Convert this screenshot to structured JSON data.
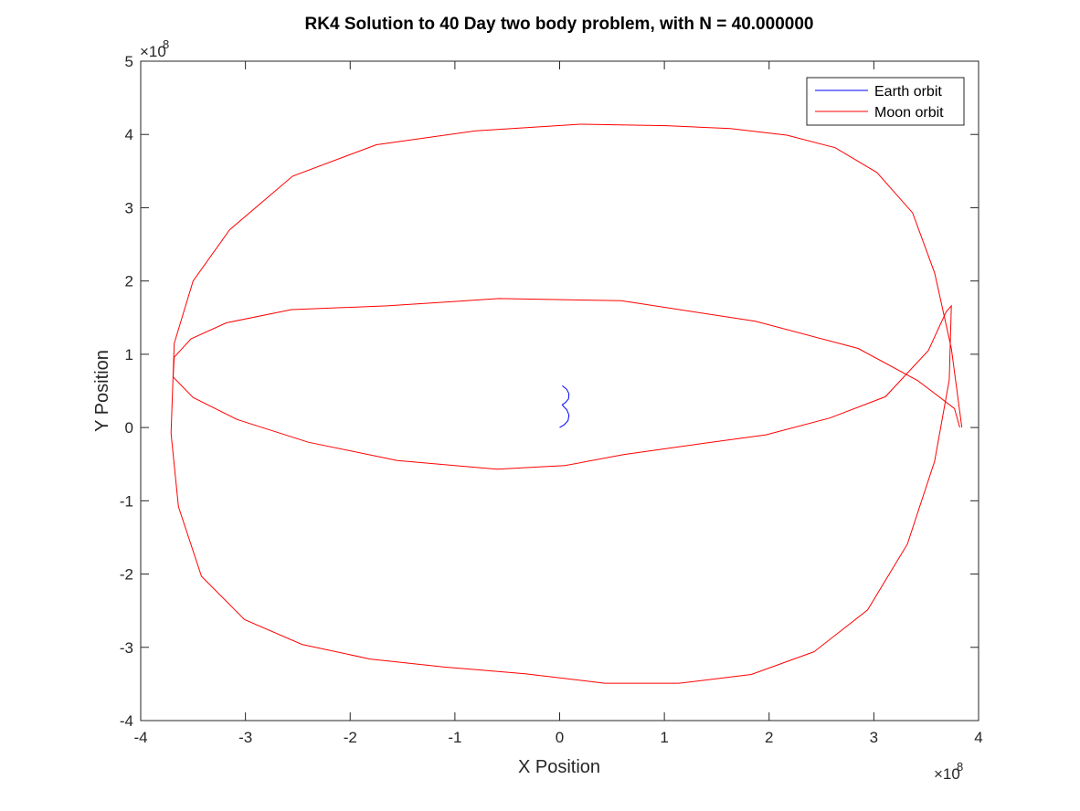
{
  "chart_data": {
    "type": "line",
    "title": "RK4 Solution to 40 Day two body problem, with N = 40.000000",
    "xlabel": "X Position",
    "ylabel": "Y Position",
    "xlim": [
      -400000000,
      400000000
    ],
    "ylim": [
      -400000000,
      500000000
    ],
    "x_ticks": [
      -400000000,
      -300000000,
      -200000000,
      -100000000,
      0,
      100000000,
      200000000,
      300000000,
      400000000
    ],
    "y_ticks": [
      -400000000,
      -300000000,
      -200000000,
      -100000000,
      0,
      100000000,
      200000000,
      300000000,
      400000000,
      500000000
    ],
    "x_tick_labels": [
      "-4",
      "-3",
      "-2",
      "-1",
      "0",
      "1",
      "2",
      "3",
      "4"
    ],
    "y_tick_labels": [
      "-4",
      "-3",
      "-2",
      "-1",
      "0",
      "1",
      "2",
      "3",
      "4",
      "5"
    ],
    "x_exponent": {
      "base": "×10",
      "power": "8"
    },
    "y_exponent": {
      "base": "×10",
      "power": "8"
    },
    "grid": false,
    "legend_position": "top-right",
    "series": [
      {
        "name": "Earth orbit",
        "color": "#0000ff",
        "x": [
          0,
          4100000,
          8000000,
          8900000,
          7000000,
          3800000,
          2500000,
          5500000,
          8500000,
          8900000,
          6800000,
          3400000,
          2500000
        ],
        "y": [
          0,
          3500000,
          9500000,
          17000000,
          24000000,
          28500000,
          31000000,
          34000000,
          39000000,
          46000000,
          52000000,
          56000000,
          57000000
        ]
      },
      {
        "name": "Moon orbit",
        "color": "#ff0000",
        "x": [
          384000000,
          374000000,
          358000000,
          337000000,
          303000000,
          263000000,
          217000000,
          163000000,
          102000000,
          20000000,
          -80000000,
          -175000000,
          -255000000,
          -315000000,
          -350000000,
          -368000000,
          -371000000,
          -364000000,
          -342000000,
          -301000000,
          -246000000,
          -181000000,
          -110000000,
          -33000000,
          43000000,
          114000000,
          183000000,
          243000000,
          294000000,
          332000000,
          358000000,
          372000000,
          374000000,
          369000000,
          352000000,
          311000000,
          258000000,
          197000000,
          130000000,
          61000000,
          5000000,
          -60000000,
          -155000000,
          -240000000,
          -308000000,
          -350000000,
          -369000000,
          -368000000,
          -352000000,
          -318000000,
          -256000000,
          -165000000,
          -58000000,
          59000000,
          187000000,
          285000000,
          342000000,
          377000000,
          382000000
        ],
        "y": [
          0,
          108000000,
          211000000,
          293000000,
          348000000,
          382000000,
          399000000,
          408000000,
          412000000,
          414000000,
          405000000,
          386000000,
          343000000,
          270000000,
          200000000,
          115000000,
          -8000000,
          -108000000,
          -203000000,
          -262000000,
          -296000000,
          -316000000,
          -327000000,
          -336000000,
          -349000000,
          -349000000,
          -337000000,
          -306000000,
          -249000000,
          -159000000,
          -46000000,
          65000000,
          166000000,
          158000000,
          105000000,
          42000000,
          13000000,
          -10000000,
          -23000000,
          -37000000,
          -52000000,
          -57000000,
          -45000000,
          -20000000,
          11000000,
          41000000,
          69000000,
          96000000,
          121000000,
          143000000,
          161000000,
          166000000,
          176000000,
          173000000,
          145000000,
          108000000,
          64000000,
          26000000,
          0
        ]
      }
    ]
  }
}
